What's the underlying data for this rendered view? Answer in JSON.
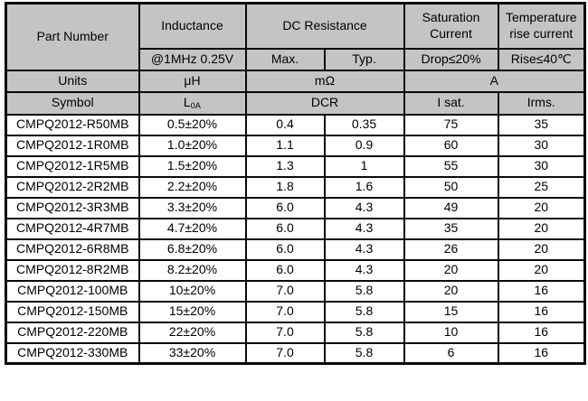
{
  "colors": {
    "header_bg": "#c4c4c4",
    "row_bg": "#ffffff",
    "border": "#0a0a0a",
    "text": "#000000"
  },
  "table": {
    "header": {
      "part_number": "Part Number",
      "inductance": "Inductance",
      "inductance_condition": "@1MHz 0.25V",
      "dc_resistance": "DC Resistance",
      "dc_resistance_max": "Max.",
      "dc_resistance_typ": "Typ.",
      "saturation_current": "Saturation Current",
      "saturation_condition": "Drop≤20%",
      "temp_rise_current": "Temperature rise current",
      "temp_rise_condition": "Rise≤40℃"
    },
    "units": {
      "label": "Units",
      "inductance": "μH",
      "resistance": "mΩ",
      "current": "A"
    },
    "symbols": {
      "label": "Symbol",
      "inductance_base": "L",
      "inductance_sub": "0A",
      "resistance": "DCR",
      "saturation": "I sat.",
      "temp_rise": "Irms."
    },
    "rows": [
      {
        "part": "CMPQ2012-R50MB",
        "inductance": "0.5±20%",
        "dcr_max": "0.4",
        "dcr_typ": "0.35",
        "isat": "75",
        "irms": "35"
      },
      {
        "part": "CMPQ2012-1R0MB",
        "inductance": "1.0±20%",
        "dcr_max": "1.1",
        "dcr_typ": "0.9",
        "isat": "60",
        "irms": "30"
      },
      {
        "part": "CMPQ2012-1R5MB",
        "inductance": "1.5±20%",
        "dcr_max": "1.3",
        "dcr_typ": "1",
        "isat": "55",
        "irms": "30"
      },
      {
        "part": "CMPQ2012-2R2MB",
        "inductance": "2.2±20%",
        "dcr_max": "1.8",
        "dcr_typ": "1.6",
        "isat": "50",
        "irms": "25"
      },
      {
        "part": "CMPQ2012-3R3MB",
        "inductance": "3.3±20%",
        "dcr_max": "6.0",
        "dcr_typ": "4.3",
        "isat": "49",
        "irms": "20"
      },
      {
        "part": "CMPQ2012-4R7MB",
        "inductance": "4.7±20%",
        "dcr_max": "6.0",
        "dcr_typ": "4.3",
        "isat": "35",
        "irms": "20"
      },
      {
        "part": "CMPQ2012-6R8MB",
        "inductance": "6.8±20%",
        "dcr_max": "6.0",
        "dcr_typ": "4.3",
        "isat": "26",
        "irms": "20"
      },
      {
        "part": "CMPQ2012-8R2MB",
        "inductance": "8.2±20%",
        "dcr_max": "6.0",
        "dcr_typ": "4.3",
        "isat": "20",
        "irms": "20"
      },
      {
        "part": "CMPQ2012-100MB",
        "inductance": "10±20%",
        "dcr_max": "7.0",
        "dcr_typ": "5.8",
        "isat": "20",
        "irms": "16"
      },
      {
        "part": "CMPQ2012-150MB",
        "inductance": "15±20%",
        "dcr_max": "7.0",
        "dcr_typ": "5.8",
        "isat": "15",
        "irms": "16"
      },
      {
        "part": "CMPQ2012-220MB",
        "inductance": "22±20%",
        "dcr_max": "7.0",
        "dcr_typ": "5.8",
        "isat": "10",
        "irms": "16"
      },
      {
        "part": "CMPQ2012-330MB",
        "inductance": "33±20%",
        "dcr_max": "7.0",
        "dcr_typ": "5.8",
        "isat": "6",
        "irms": "16"
      }
    ]
  }
}
